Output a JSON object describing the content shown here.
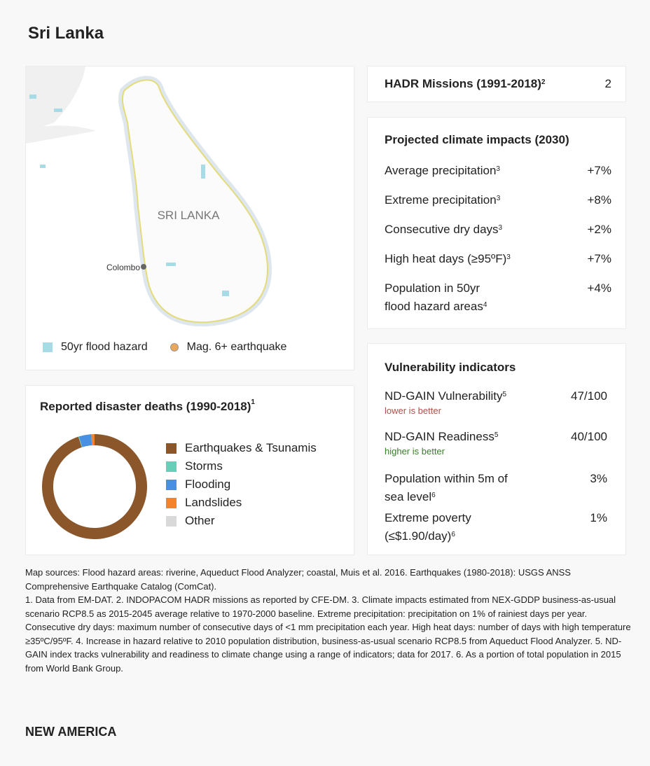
{
  "country": "Sri Lanka",
  "map": {
    "label": "SRI LANKA",
    "city": "Colombo",
    "legend": [
      {
        "label": "50yr flood hazard",
        "color": "#a7dbe6"
      },
      {
        "label": "Mag. 6+ earthquake",
        "color": "#e8a75a"
      }
    ]
  },
  "hadr": {
    "label": "HADR Missions (1991-2018)",
    "note": "2",
    "value": "2"
  },
  "climate": {
    "title": "Projected climate impacts (2030)",
    "rows": [
      {
        "label": "Average precipitation",
        "note": "3",
        "value": "+7%"
      },
      {
        "label": "Extreme precipitation",
        "note": "3",
        "value": "+8%"
      },
      {
        "label": "Consecutive dry days",
        "note": "3",
        "value": "+2%"
      },
      {
        "label": "High heat days (≥95ºF)",
        "note": "3",
        "value": "+7%"
      },
      {
        "label": "Population in 50yr",
        "label2": "flood hazard areas",
        "note": "4",
        "value": "+4%"
      }
    ]
  },
  "vuln": {
    "title": "Vulnerability indicators",
    "rows": [
      {
        "label": "ND-GAIN Vulnerability",
        "note": "5",
        "value": "47/100",
        "sub": "lower is better"
      },
      {
        "label": "ND-GAIN Readiness",
        "note": "5",
        "value": "40/100",
        "sub": "higher is better"
      },
      {
        "label": "Population within 5m of",
        "label2": "sea level",
        "note": "6",
        "value": "3%"
      },
      {
        "label": "Extreme poverty",
        "label2": "(≤$1.90/day)",
        "note": "6",
        "value": "1%"
      }
    ],
    "sub_colors": [
      "#b0504a",
      "#3a7d2c"
    ]
  },
  "chart_data": {
    "type": "pie",
    "title": "Reported disaster deaths (1990-2018)",
    "title_note": "1",
    "donut": true,
    "categories": [
      "Earthquakes & Tsunamis",
      "Storms",
      "Flooding",
      "Landslides",
      "Other"
    ],
    "values": [
      95,
      0.2,
      3.8,
      1,
      0
    ],
    "colors": [
      "#8b572a",
      "#67cfb7",
      "#4a90e2",
      "#f5832a",
      "#d9d9d9"
    ],
    "legend_position": "right"
  },
  "footnotes": {
    "sources": "Map sources: Flood hazard areas: riverine, Aqueduct Flood Analyzer; coastal, Muis et al. 2016. Earthquakes (1980-2018): USGS ANSS Comprehensive Earthquake Catalog (ComCat).",
    "notes": "1. Data from EM-DAT. 2. INDOPACOM HADR missions as reported by CFE-DM. 3. Climate impacts estimated from NEX-GDDP business-as-usual scenario RCP8.5 as 2015-2045 average relative to 1970-2000 baseline. Extreme precipitation: precipitation on 1% of rainiest days per year. Consecutive dry days: maximum number of consecutive days of <1 mm precipitation each year. High heat days: number of days with high temperature ≥35ºC/95ºF. 4. Increase in hazard relative to 2010 population distribution, business-as-usual scenario RCP8.5 from Aqueduct Flood Analyzer. 5. ND-GAIN index tracks vulnerability and readiness to climate change using a range of indicators; data for 2017. 6. As a portion of total population in 2015 from World Bank Group."
  },
  "brand": "NEW AMERICA"
}
